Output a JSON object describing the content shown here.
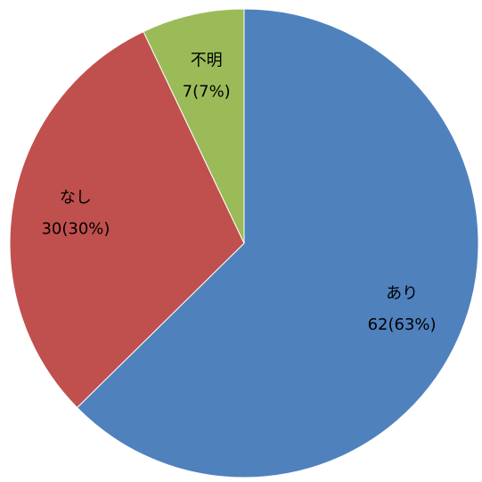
{
  "chart_data": {
    "type": "pie",
    "categories": [
      "あり",
      "なし",
      "不明"
    ],
    "values": [
      62,
      30,
      7
    ],
    "value_labels": [
      "62(63%)",
      "30(30%)",
      "7(7%)"
    ],
    "colors": [
      "#4f81bd",
      "#c0504d",
      "#9bbb59"
    ]
  }
}
